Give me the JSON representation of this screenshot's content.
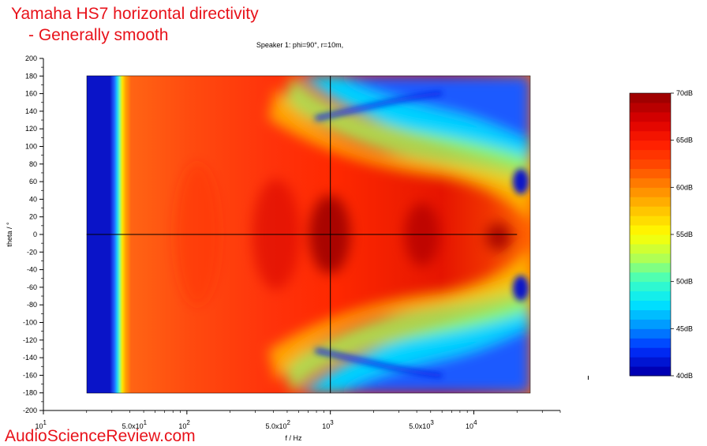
{
  "overlay": {
    "title_line1": "Yamaha HS7 horizontal directivity",
    "title_line2": "- Generally smooth",
    "watermark": "AudioScienceReview.com"
  },
  "chart_data": {
    "type": "heatmap",
    "title": "Speaker 1: phi=90°, r=10m,",
    "xlabel": "f / Hz",
    "ylabel": "theta / °",
    "x_scale": "log",
    "xlim": [
      10,
      40000
    ],
    "ylim": [
      -200,
      200
    ],
    "data_x_range": [
      20,
      20000
    ],
    "data_y_range": [
      -180,
      180
    ],
    "x_tick_labels": [
      {
        "value": 10,
        "base": "10",
        "exp": "1"
      },
      {
        "value": 50,
        "base": "5.0x10",
        "exp": "1"
      },
      {
        "value": 100,
        "base": "10",
        "exp": "2"
      },
      {
        "value": 500,
        "base": "5.0x10",
        "exp": "2"
      },
      {
        "value": 1000,
        "base": "10",
        "exp": "3"
      },
      {
        "value": 5000,
        "base": "5.0x10",
        "exp": "3"
      },
      {
        "value": 10000,
        "base": "10",
        "exp": "4"
      }
    ],
    "y_ticks": [
      200,
      180,
      160,
      140,
      120,
      100,
      80,
      60,
      40,
      20,
      0,
      -20,
      -40,
      -60,
      -80,
      -100,
      -120,
      -140,
      -160,
      -180,
      -200
    ],
    "crosshair": {
      "frequency": 1000,
      "theta": 0
    },
    "colorbar": {
      "min": 40,
      "max": 70,
      "unit": "dB",
      "tick_labels": [
        "70dB",
        "65dB",
        "60dB",
        "55dB",
        "50dB",
        "45dB",
        "40dB"
      ],
      "tick_values": [
        70,
        65,
        60,
        55,
        50,
        45,
        40
      ],
      "colors": [
        "#0000b4",
        "#0032ff",
        "#0096ff",
        "#00e6ff",
        "#40ffbf",
        "#b4ff50",
        "#ffff00",
        "#ffc800",
        "#ff8c00",
        "#ff4b00",
        "#ff1e00",
        "#dc0000",
        "#a00000"
      ]
    }
  }
}
